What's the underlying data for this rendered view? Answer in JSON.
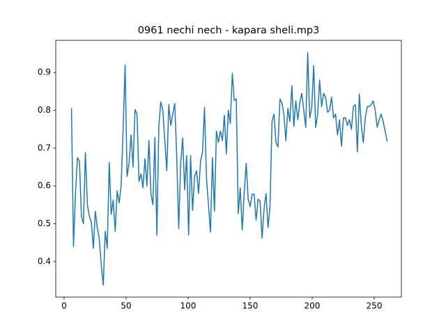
{
  "chart_data": {
    "type": "line",
    "title": "0961 nechi nech - kapara sheli.mp3",
    "x": [
      6,
      7.6,
      9.2,
      10.8,
      12.4,
      14,
      15.6,
      17.2,
      18.8,
      20.4,
      22,
      23.6,
      25.2,
      26.8,
      28.4,
      30,
      31.6,
      33.2,
      34.8,
      36.4,
      38,
      39.6,
      41.2,
      42.8,
      44.4,
      46,
      47.6,
      49.2,
      50.8,
      52.4,
      54,
      55.6,
      57.2,
      58.8,
      60.4,
      62,
      63.6,
      65.2,
      66.8,
      68.4,
      70,
      71.6,
      73.2,
      74.8,
      76.4,
      78,
      79.6,
      81.2,
      82.8,
      84.4,
      86,
      87.6,
      89.2,
      90.8,
      92.4,
      94,
      95.6,
      97.2,
      98.8,
      100.4,
      102,
      103.6,
      105.2,
      106.8,
      108.4,
      110,
      111.6,
      113.2,
      114.8,
      116.4,
      118,
      119.6,
      121.2,
      122.8,
      124.4,
      126,
      127.6,
      129.2,
      130.8,
      132.4,
      134,
      135.6,
      137.2,
      138.8,
      140.4,
      142,
      143.6,
      145.2,
      146.8,
      148.4,
      150,
      151.6,
      153.2,
      154.8,
      156.4,
      158,
      159.6,
      161.2,
      162.8,
      164.4,
      166,
      167.6,
      169.2,
      170.8,
      172.4,
      174,
      175.6,
      177.2,
      178.8,
      180.4,
      182,
      183.6,
      185.2,
      186.8,
      188.4,
      190,
      191.6,
      193.2,
      194.8,
      196.4,
      198,
      199.6,
      201.2,
      202.8,
      204.4,
      206,
      207.6,
      209.2,
      210.8,
      212.4,
      214,
      215.6,
      217.2,
      218.8,
      220.4,
      222,
      223.6,
      225.2,
      226.8,
      228.4,
      230,
      231.6,
      233.2,
      234.8,
      236.4,
      238,
      239.6,
      241.2,
      242.8,
      244.4,
      246,
      247.6,
      249.2,
      250.8,
      252.4,
      254,
      255.6,
      257.2,
      258.8,
      260.4
    ],
    "series": [
      {
        "color": "#1f77b4",
        "values": [
          0.805,
          0.44,
          0.58,
          0.675,
          0.665,
          0.52,
          0.5,
          0.688,
          0.55,
          0.52,
          0.505,
          0.435,
          0.533,
          0.49,
          0.46,
          0.39,
          0.338,
          0.48,
          0.435,
          0.662,
          0.525,
          0.563,
          0.48,
          0.587,
          0.555,
          0.6,
          0.75,
          0.92,
          0.625,
          0.66,
          0.735,
          0.65,
          0.802,
          0.79,
          0.612,
          0.632,
          0.595,
          0.672,
          0.6,
          0.72,
          0.58,
          0.55,
          0.728,
          0.47,
          0.76,
          0.822,
          0.8,
          0.72,
          0.64,
          0.815,
          0.76,
          0.79,
          0.818,
          0.68,
          0.487,
          0.66,
          0.727,
          0.59,
          0.68,
          0.47,
          0.68,
          0.535,
          0.625,
          0.64,
          0.58,
          0.665,
          0.69,
          0.808,
          0.62,
          0.55,
          0.478,
          0.675,
          0.533,
          0.745,
          0.715,
          0.745,
          0.72,
          0.787,
          0.685,
          0.8,
          0.765,
          0.898,
          0.826,
          0.83,
          0.527,
          0.595,
          0.484,
          0.58,
          0.66,
          0.565,
          0.545,
          0.578,
          0.578,
          0.51,
          0.565,
          0.56,
          0.462,
          0.54,
          0.58,
          0.49,
          0.545,
          0.77,
          0.79,
          0.715,
          0.703,
          0.83,
          0.82,
          0.79,
          0.72,
          0.805,
          0.77,
          0.865,
          0.757,
          0.825,
          0.775,
          0.82,
          0.845,
          0.8,
          0.755,
          0.952,
          0.78,
          0.805,
          0.918,
          0.755,
          0.79,
          0.88,
          0.81,
          0.845,
          0.835,
          0.795,
          0.8,
          0.835,
          0.78,
          0.79,
          0.735,
          0.775,
          0.705,
          0.78,
          0.78,
          0.76,
          0.775,
          0.75,
          0.81,
          0.815,
          0.69,
          0.843,
          0.76,
          0.715,
          0.78,
          0.81,
          0.81,
          0.815,
          0.825,
          0.8,
          0.755,
          0.775,
          0.79,
          0.77,
          0.745,
          0.718
        ]
      }
    ],
    "xlim": [
      -6.7,
      271.9
    ],
    "xticks": [
      0,
      50,
      100,
      150,
      200,
      250
    ],
    "ylim": [
      0.306,
      0.985
    ],
    "yticks": [
      0.4,
      0.5,
      0.6,
      0.7,
      0.8,
      0.9
    ]
  }
}
